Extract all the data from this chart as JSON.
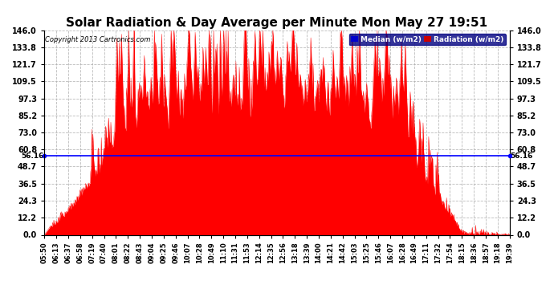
{
  "title": "Solar Radiation & Day Average per Minute Mon May 27 19:51",
  "copyright": "Copyright 2013 Cartronics.com",
  "median_value": 56.16,
  "y_ticks": [
    0.0,
    12.2,
    24.3,
    36.5,
    48.7,
    60.8,
    73.0,
    85.2,
    97.3,
    109.5,
    121.7,
    133.8,
    146.0
  ],
  "y_max": 146.0,
  "y_min": 0.0,
  "bar_color": "#FF0000",
  "median_color": "#0000FF",
  "background_color": "#FFFFFF",
  "grid_color": "#AAAAAA",
  "title_fontsize": 11,
  "legend_median_color": "#0000CD",
  "legend_radiation_color": "#CC0000",
  "x_labels": [
    "05:50",
    "06:13",
    "06:37",
    "06:58",
    "07:19",
    "07:40",
    "08:01",
    "08:22",
    "08:43",
    "09:04",
    "09:25",
    "09:46",
    "10:07",
    "10:28",
    "10:49",
    "11:10",
    "11:31",
    "11:53",
    "12:14",
    "12:35",
    "12:56",
    "13:18",
    "13:39",
    "14:00",
    "14:21",
    "14:42",
    "15:03",
    "15:25",
    "15:46",
    "16:07",
    "16:28",
    "16:49",
    "17:11",
    "17:32",
    "17:54",
    "18:15",
    "18:36",
    "18:57",
    "19:18",
    "19:39"
  ]
}
